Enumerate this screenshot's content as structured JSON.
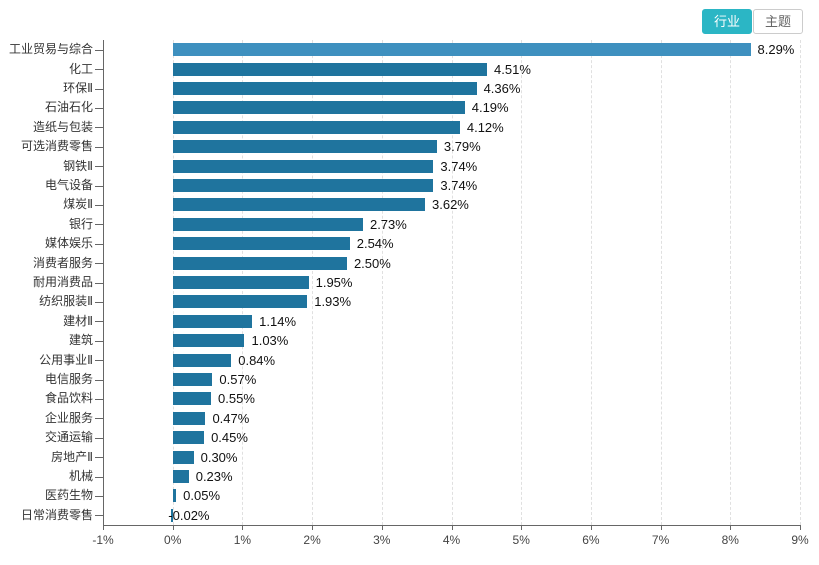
{
  "tabs": {
    "industry": "行业",
    "theme": "主题"
  },
  "colors": {
    "bar": "#1f749e",
    "bar_highlight": "#3e90bf",
    "accent": "#2bb6c5",
    "grid": "#e0e0e0",
    "axis": "#666666"
  },
  "chart_data": {
    "type": "bar",
    "orientation": "horizontal",
    "title": "",
    "xlabel": "",
    "ylabel": "",
    "xlim": [
      -1,
      9
    ],
    "x_tick_labels": [
      "-1%",
      "0%",
      "1%",
      "2%",
      "3%",
      "4%",
      "5%",
      "6%",
      "7%",
      "8%",
      "9%"
    ],
    "grid": true,
    "legend": null,
    "highlighted_category": "工业贸易与综合",
    "categories": [
      "工业贸易与综合",
      "化工",
      "环保Ⅱ",
      "石油石化",
      "造纸与包装",
      "可选消费零售",
      "钢铁Ⅱ",
      "电气设备",
      "煤炭Ⅱ",
      "银行",
      "媒体娱乐",
      "消费者服务",
      "耐用消费品",
      "纺织服装Ⅱ",
      "建材Ⅱ",
      "建筑",
      "公用事业Ⅱ",
      "电信服务",
      "食品饮料",
      "企业服务",
      "交通运输",
      "房地产Ⅱ",
      "机械",
      "医药生物",
      "日常消费零售"
    ],
    "values": [
      8.29,
      4.51,
      4.36,
      4.19,
      4.12,
      3.79,
      3.74,
      3.74,
      3.62,
      2.73,
      2.54,
      2.5,
      1.95,
      1.93,
      1.14,
      1.03,
      0.84,
      0.57,
      0.55,
      0.47,
      0.45,
      0.3,
      0.23,
      0.05,
      -0.02
    ],
    "display_values": [
      "8.29%",
      "4.51%",
      "4.36%",
      "4.19%",
      "4.12%",
      "3.79%",
      "3.74%",
      "3.74%",
      "3.62%",
      "2.73%",
      "2.54%",
      "2.50%",
      "1.95%",
      "1.93%",
      "1.14%",
      "1.03%",
      "0.84%",
      "0.57%",
      "0.55%",
      "0.47%",
      "0.45%",
      "0.30%",
      "0.23%",
      "0.05%",
      "-0.02%"
    ]
  }
}
